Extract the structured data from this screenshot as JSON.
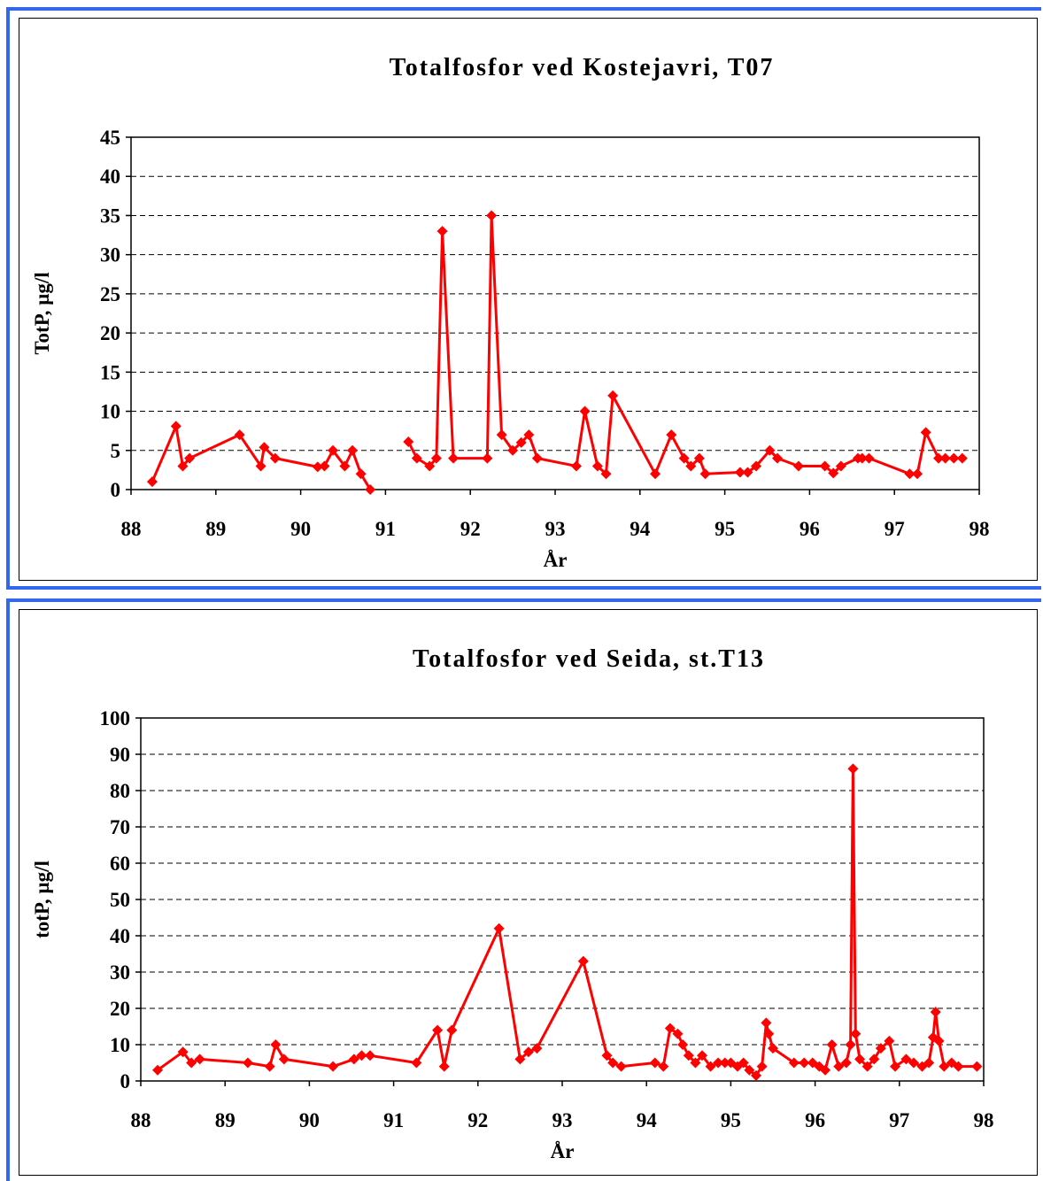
{
  "chart_data": [
    {
      "type": "line",
      "title": "Totalfosfor ved Kostejavri, T07",
      "xlabel": "År",
      "ylabel": "TotP, µg/l",
      "xlim": [
        88,
        98
      ],
      "ylim": [
        0,
        45
      ],
      "xticks": [
        "88",
        "89",
        "90",
        "91",
        "92",
        "93",
        "94",
        "95",
        "96",
        "97",
        "98"
      ],
      "yticks": [
        "0",
        "5",
        "10",
        "15",
        "20",
        "25",
        "30",
        "35",
        "40",
        "45"
      ],
      "grid": "horizontal dashed",
      "color": "#ff0000",
      "segments": [
        [
          [
            88.25,
            1
          ],
          [
            88.53,
            8.1
          ],
          [
            88.61,
            3
          ],
          [
            88.69,
            4
          ],
          [
            89.28,
            7
          ],
          [
            89.53,
            3
          ],
          [
            89.57,
            5.4
          ],
          [
            89.7,
            4
          ],
          [
            90.2,
            2.9
          ],
          [
            90.28,
            3
          ],
          [
            90.38,
            5
          ],
          [
            90.52,
            3
          ],
          [
            90.61,
            5
          ],
          [
            90.71,
            2
          ],
          [
            90.82,
            0
          ]
        ],
        [
          [
            91.27,
            6.1
          ],
          [
            91.37,
            4
          ],
          [
            91.52,
            3
          ],
          [
            91.6,
            4
          ],
          [
            91.67,
            33
          ],
          [
            91.8,
            4
          ],
          [
            92.2,
            4
          ],
          [
            92.25,
            35
          ],
          [
            92.37,
            7
          ],
          [
            92.5,
            5
          ],
          [
            92.6,
            6
          ],
          [
            92.69,
            7
          ],
          [
            92.79,
            4
          ],
          [
            93.25,
            3
          ],
          [
            93.35,
            10
          ],
          [
            93.5,
            3
          ],
          [
            93.6,
            2
          ],
          [
            93.68,
            12
          ],
          [
            94.18,
            2
          ],
          [
            94.37,
            7
          ],
          [
            94.52,
            4
          ],
          [
            94.6,
            3
          ],
          [
            94.7,
            4
          ],
          [
            94.77,
            2
          ],
          [
            95.18,
            2.2
          ],
          [
            95.27,
            2.2
          ],
          [
            95.37,
            3
          ],
          [
            95.53,
            5
          ],
          [
            95.62,
            4
          ],
          [
            95.87,
            3
          ],
          [
            96.18,
            3
          ],
          [
            96.28,
            2.1
          ],
          [
            96.37,
            3
          ],
          [
            96.57,
            4
          ],
          [
            96.62,
            4
          ],
          [
            96.7,
            4
          ],
          [
            97.18,
            2
          ],
          [
            97.27,
            2
          ],
          [
            97.37,
            7.3
          ],
          [
            97.52,
            4
          ],
          [
            97.6,
            4
          ],
          [
            97.7,
            4
          ],
          [
            97.8,
            4
          ]
        ]
      ]
    },
    {
      "type": "line",
      "title": "Totalfosfor ved Seida, st.T13",
      "xlabel": "År",
      "ylabel": "totP, µg/l",
      "xlim": [
        88,
        98
      ],
      "ylim": [
        0,
        100
      ],
      "xticks": [
        "88",
        "89",
        "90",
        "91",
        "92",
        "93",
        "94",
        "95",
        "96",
        "97",
        "98"
      ],
      "yticks": [
        "0",
        "10",
        "20",
        "30",
        "40",
        "50",
        "60",
        "70",
        "80",
        "90",
        "100"
      ],
      "grid": "horizontal dashed",
      "color": "#ff0000",
      "segments": [
        [
          [
            88.2,
            3
          ],
          [
            88.5,
            8
          ],
          [
            88.6,
            5
          ],
          [
            88.7,
            6
          ],
          [
            89.27,
            5
          ],
          [
            89.53,
            4
          ],
          [
            89.6,
            10
          ],
          [
            89.7,
            6
          ],
          [
            90.28,
            4
          ],
          [
            90.53,
            6
          ],
          [
            90.62,
            7
          ],
          [
            90.72,
            7
          ],
          [
            91.27,
            5
          ],
          [
            91.52,
            14
          ],
          [
            91.6,
            4
          ],
          [
            91.69,
            14
          ],
          [
            92.25,
            42
          ],
          [
            92.5,
            6
          ],
          [
            92.6,
            8
          ],
          [
            92.7,
            9
          ],
          [
            93.25,
            33
          ],
          [
            93.53,
            7
          ],
          [
            93.6,
            5
          ],
          [
            93.7,
            4
          ],
          [
            94.1,
            5
          ],
          [
            94.2,
            4
          ],
          [
            94.28,
            14.5
          ],
          [
            94.37,
            13
          ],
          [
            94.43,
            10
          ],
          [
            94.5,
            7
          ],
          [
            94.58,
            5
          ],
          [
            94.66,
            7
          ],
          [
            94.76,
            4
          ],
          [
            94.85,
            5
          ],
          [
            94.93,
            5
          ],
          [
            95.0,
            5
          ],
          [
            95.08,
            4
          ],
          [
            95.15,
            5
          ],
          [
            95.22,
            3
          ],
          [
            95.3,
            1.5
          ],
          [
            95.37,
            4
          ],
          [
            95.42,
            16
          ],
          [
            95.45,
            13
          ],
          [
            95.5,
            9
          ],
          [
            95.75,
            5
          ],
          [
            95.87,
            5
          ],
          [
            95.97,
            5
          ],
          [
            96.05,
            4
          ],
          [
            96.12,
            3
          ],
          [
            96.2,
            10
          ],
          [
            96.28,
            4
          ],
          [
            96.37,
            5
          ],
          [
            96.42,
            10
          ],
          [
            96.45,
            86
          ],
          [
            96.48,
            13
          ],
          [
            96.53,
            6
          ],
          [
            96.62,
            4
          ],
          [
            96.7,
            6
          ],
          [
            96.78,
            9
          ],
          [
            96.88,
            11
          ],
          [
            96.95,
            4
          ],
          [
            97.08,
            6
          ],
          [
            97.17,
            5
          ],
          [
            97.27,
            4
          ],
          [
            97.35,
            5
          ],
          [
            97.4,
            12
          ],
          [
            97.43,
            19
          ],
          [
            97.47,
            11
          ],
          [
            97.53,
            4
          ],
          [
            97.62,
            5
          ],
          [
            97.7,
            4
          ],
          [
            97.92,
            4
          ]
        ]
      ]
    }
  ]
}
